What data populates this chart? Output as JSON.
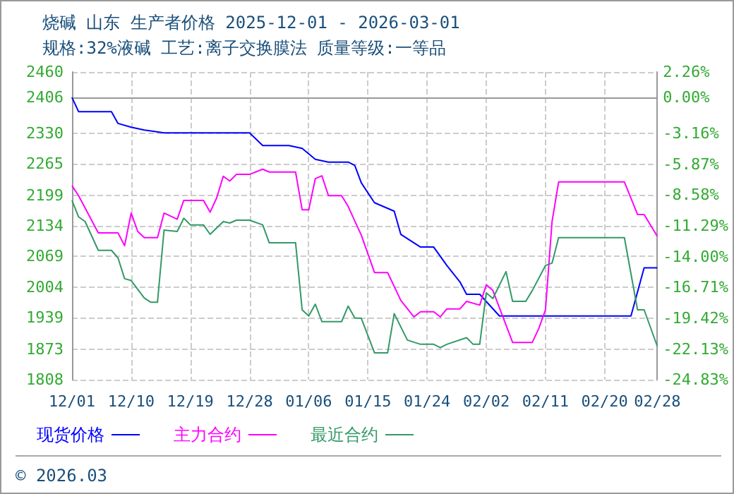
{
  "chart_data": {
    "type": "line",
    "title": "烧碱 山东 生产者价格 2025-12-01 - 2026-03-01",
    "subtitle": "规格:32%液碱 工艺:离子交换膜法 质量等级:一等品",
    "annotations": [
      "© 2026.03"
    ],
    "xlim": [
      "2025-12-01",
      "2026-02-28"
    ],
    "xticks": [
      {
        "value": "2025-12-01",
        "label": "12/01"
      },
      {
        "value": "2025-12-10",
        "label": "12/10"
      },
      {
        "value": "2025-12-19",
        "label": "12/19"
      },
      {
        "value": "2025-12-28",
        "label": "12/28"
      },
      {
        "value": "2026-01-06",
        "label": "01/06"
      },
      {
        "value": "2026-01-15",
        "label": "01/15"
      },
      {
        "value": "2026-01-24",
        "label": "01/24"
      },
      {
        "value": "2026-02-02",
        "label": "02/02"
      },
      {
        "value": "2026-02-11",
        "label": "02/11"
      },
      {
        "value": "2026-02-20",
        "label": "02/20"
      },
      {
        "value": "2026-02-28",
        "label": "02/28"
      }
    ],
    "ylim": [
      1808,
      2460
    ],
    "yticks": [
      1808,
      1873,
      1939,
      2004,
      2069,
      2134,
      2199,
      2265,
      2330,
      2406,
      2460
    ],
    "y2lim": [
      -24.83,
      2.26
    ],
    "y2ticks": [
      {
        "value": -24.83,
        "label": "-24.83%"
      },
      {
        "value": -22.13,
        "label": "-22.13%"
      },
      {
        "value": -19.42,
        "label": "-19.42%"
      },
      {
        "value": -16.71,
        "label": "-16.71%"
      },
      {
        "value": -14.0,
        "label": "-14.00%"
      },
      {
        "value": -11.29,
        "label": "-11.29%"
      },
      {
        "value": -8.58,
        "label": "-8.58%"
      },
      {
        "value": -5.87,
        "label": "-5.87%"
      },
      {
        "value": -3.16,
        "label": "-3.16%"
      },
      {
        "value": 0,
        "label": "0.00%"
      },
      {
        "value": 2.26,
        "label": "2.26%"
      }
    ],
    "grid": true,
    "legend": "bottom left",
    "marker": "none",
    "line_style": "solid",
    "series": [
      {
        "name": "现货价格",
        "color": "#0000ff",
        "x": [
          "2025-12-01",
          "2025-12-02",
          "2025-12-07",
          "2025-12-08",
          "2025-12-10",
          "2025-12-12",
          "2025-12-15",
          "2025-12-28",
          "2025-12-30",
          "2026-01-03",
          "2026-01-05",
          "2026-01-07",
          "2026-01-09",
          "2026-01-12",
          "2026-01-13",
          "2026-01-14",
          "2026-01-16",
          "2026-01-19",
          "2026-01-20",
          "2026-01-23",
          "2026-01-25",
          "2026-01-27",
          "2026-01-29",
          "2026-01-30",
          "2026-02-01",
          "2026-02-04",
          "2026-02-24",
          "2026-02-26",
          "2026-02-28"
        ],
        "values": [
          2406,
          2376,
          2376,
          2351,
          2343,
          2337,
          2331,
          2331,
          2304,
          2304,
          2298,
          2275,
          2269,
          2269,
          2262,
          2225,
          2183,
          2165,
          2116,
          2089,
          2089,
          2050,
          2015,
          1989,
          1989,
          1943,
          1943,
          2045,
          2045
        ]
      },
      {
        "name": "主力合约",
        "color": "#ff00ff",
        "x": [
          "2025-12-01",
          "2025-12-02",
          "2025-12-05",
          "2025-12-08",
          "2025-12-09",
          "2025-12-10",
          "2025-12-11",
          "2025-12-12",
          "2025-12-14",
          "2025-12-15",
          "2025-12-17",
          "2025-12-18",
          "2025-12-21",
          "2025-12-22",
          "2025-12-23",
          "2025-12-24",
          "2025-12-25",
          "2025-12-26",
          "2025-12-28",
          "2025-12-30",
          "2025-12-31",
          "2026-01-04",
          "2026-01-05",
          "2026-01-06",
          "2026-01-07",
          "2026-01-08",
          "2026-01-09",
          "2026-01-11",
          "2026-01-12",
          "2026-01-14",
          "2026-01-16",
          "2026-01-18",
          "2026-01-20",
          "2026-01-22",
          "2026-01-23",
          "2026-01-25",
          "2026-01-26",
          "2026-01-27",
          "2026-01-29",
          "2026-01-30",
          "2026-02-01",
          "2026-02-02",
          "2026-02-03",
          "2026-02-06",
          "2026-02-09",
          "2026-02-10",
          "2026-02-11",
          "2026-02-12",
          "2026-02-13",
          "2026-02-23",
          "2026-02-25",
          "2026-02-26",
          "2026-02-28"
        ],
        "values": [
          2219,
          2198,
          2119,
          2119,
          2092,
          2161,
          2122,
          2109,
          2109,
          2161,
          2148,
          2188,
          2188,
          2163,
          2193,
          2239,
          2229,
          2243,
          2243,
          2254,
          2248,
          2248,
          2168,
          2168,
          2234,
          2240,
          2198,
          2198,
          2175,
          2114,
          2035,
          2035,
          1976,
          1941,
          1952,
          1952,
          1941,
          1958,
          1958,
          1974,
          1966,
          2009,
          1997,
          1887,
          1887,
          1917,
          1956,
          2143,
          2227,
          2227,
          2158,
          2158,
          2112
        ]
      },
      {
        "name": "最近合约",
        "color": "#339966",
        "x": [
          "2025-12-01",
          "2025-12-02",
          "2025-12-03",
          "2025-12-05",
          "2025-12-07",
          "2025-12-08",
          "2025-12-09",
          "2025-12-10",
          "2025-12-12",
          "2025-12-13",
          "2025-12-14",
          "2025-12-15",
          "2025-12-17",
          "2025-12-18",
          "2025-12-19",
          "2025-12-21",
          "2025-12-22",
          "2025-12-24",
          "2025-12-25",
          "2025-12-26",
          "2025-12-28",
          "2025-12-30",
          "2025-12-31",
          "2026-01-04",
          "2026-01-05",
          "2026-01-06",
          "2026-01-07",
          "2026-01-08",
          "2026-01-11",
          "2026-01-12",
          "2026-01-13",
          "2026-01-14",
          "2026-01-16",
          "2026-01-18",
          "2026-01-19",
          "2026-01-21",
          "2026-01-23",
          "2026-01-25",
          "2026-01-26",
          "2026-01-27",
          "2026-01-30",
          "2026-01-31",
          "2026-02-01",
          "2026-02-02",
          "2026-02-03",
          "2026-02-05",
          "2026-02-06",
          "2026-02-08",
          "2026-02-09",
          "2026-02-11",
          "2026-02-12",
          "2026-02-13",
          "2026-02-23",
          "2026-02-25",
          "2026-02-26",
          "2026-02-28"
        ],
        "values": [
          2188,
          2153,
          2143,
          2082,
          2082,
          2066,
          2022,
          2018,
          1981,
          1972,
          1972,
          2125,
          2122,
          2150,
          2136,
          2136,
          2116,
          2143,
          2140,
          2146,
          2146,
          2136,
          2098,
          2098,
          1956,
          1943,
          1968,
          1931,
          1931,
          1964,
          1939,
          1938,
          1865,
          1865,
          1948,
          1892,
          1883,
          1883,
          1876,
          1883,
          1897,
          1883,
          1883,
          1992,
          1980,
          2037,
          1974,
          1974,
          1997,
          2050,
          2055,
          2109,
          2109,
          1956,
          1956,
          1879
        ]
      }
    ]
  }
}
